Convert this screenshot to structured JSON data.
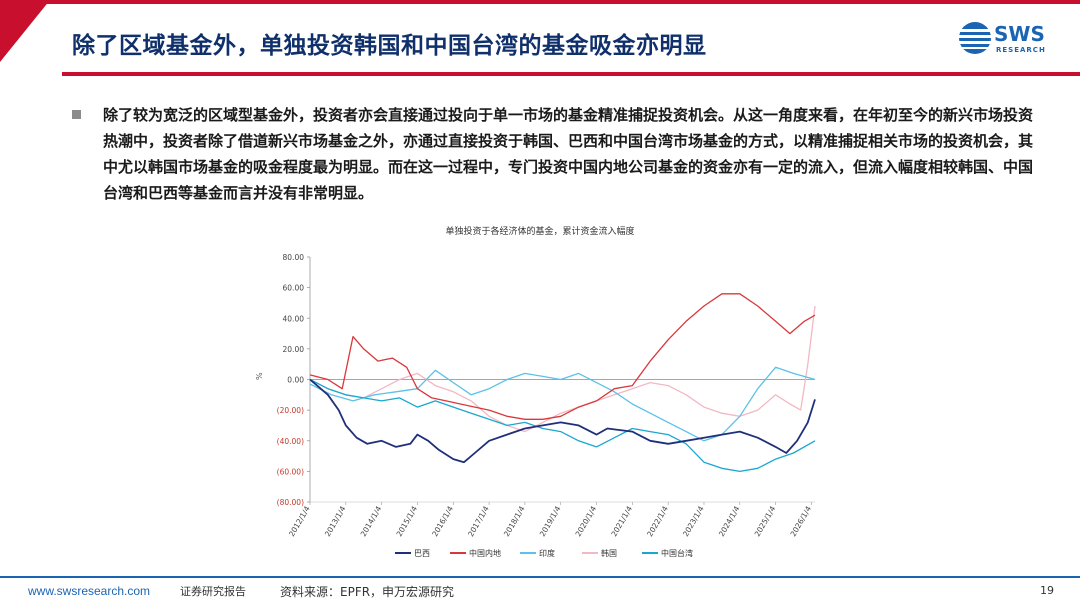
{
  "header": {
    "title": "除了区域基金外，单独投资韩国和中国台湾的基金吸金亦明显",
    "logo_text": "SWS",
    "logo_sub": "RESEARCH"
  },
  "body": {
    "paragraph": "除了较为宽泛的区域型基金外，投资者亦会直接通过投向于单一市场的基金精准捕捉投资机会。从这一角度来看，在年初至今的新兴市场投资热潮中，投资者除了借道新兴市场基金之外，亦通过直接投资于韩国、巴西和中国台湾市场基金的方式，以精准捕捉相关市场的投资机会，其中尤以韩国市场基金的吸金程度最为明显。而在这一过程中，专门投资中国内地公司基金的资金亦有一定的流入，但流入幅度相较韩国、中国台湾和巴西等基金而言并没有非常明显。"
  },
  "chart_data": {
    "type": "line",
    "title": "单独投资于各经济体的基金，累计资金流入幅度",
    "ylabel": "%",
    "ylim": [
      -80,
      80
    ],
    "y_ticks": [
      "80.00",
      "60.00",
      "40.00",
      "20.00",
      "0.00",
      "(20.00)",
      "(40.00)",
      "(60.00)",
      "(80.00)"
    ],
    "y_tick_values": [
      80,
      60,
      40,
      20,
      0,
      -20,
      -40,
      -60,
      -80
    ],
    "x_ticks": [
      "2012/1/4",
      "2013/1/4",
      "2014/1/4",
      "2015/1/4",
      "2016/1/4",
      "2017/1/4",
      "2018/1/4",
      "2019/1/4",
      "2020/1/4",
      "2021/1/4",
      "2022/1/4",
      "2023/1/4",
      "2024/1/4",
      "2025/1/4",
      "2026/1/4"
    ],
    "legend_position": "bottom",
    "series": [
      {
        "name": "巴西",
        "color": "#1f2f7a",
        "x": [
          2012.0,
          2012.5,
          2012.8,
          2013.0,
          2013.3,
          2013.6,
          2014.0,
          2014.4,
          2014.8,
          2015.0,
          2015.3,
          2015.6,
          2016.0,
          2016.3,
          2016.6,
          2017.0,
          2017.5,
          2018.0,
          2018.5,
          2019.0,
          2019.5,
          2020.0,
          2020.3,
          2021.0,
          2021.5,
          2022.0,
          2022.5,
          2023.0,
          2023.5,
          2024.0,
          2024.5,
          2025.0,
          2025.3,
          2025.6,
          2025.9,
          2026.1
        ],
        "y": [
          0,
          -10,
          -20,
          -30,
          -38,
          -42,
          -40,
          -44,
          -42,
          -36,
          -40,
          -46,
          -52,
          -54,
          -48,
          -40,
          -36,
          -32,
          -30,
          -28,
          -30,
          -36,
          -32,
          -34,
          -40,
          -42,
          -40,
          -38,
          -36,
          -34,
          -38,
          -44,
          -48,
          -40,
          -28,
          -13
        ]
      },
      {
        "name": "中国内地",
        "color": "#d9383a",
        "x": [
          2012.0,
          2012.5,
          2012.9,
          2013.2,
          2013.5,
          2013.9,
          2014.3,
          2014.7,
          2015.0,
          2015.4,
          2015.8,
          2016.2,
          2016.6,
          2017.0,
          2017.5,
          2018.0,
          2018.5,
          2019.0,
          2019.5,
          2020.0,
          2020.5,
          2021.0,
          2021.5,
          2022.0,
          2022.5,
          2023.0,
          2023.5,
          2024.0,
          2024.5,
          2025.0,
          2025.4,
          2025.8,
          2026.1
        ],
        "y": [
          3,
          0,
          -6,
          28,
          20,
          12,
          14,
          8,
          -6,
          -12,
          -14,
          -16,
          -18,
          -20,
          -24,
          -26,
          -26,
          -24,
          -18,
          -14,
          -6,
          -4,
          12,
          26,
          38,
          48,
          56,
          56,
          48,
          38,
          30,
          38,
          42
        ]
      },
      {
        "name": "印度",
        "color": "#5bc1e8",
        "x": [
          2012.0,
          2012.6,
          2013.2,
          2013.8,
          2014.4,
          2015.0,
          2015.5,
          2016.0,
          2016.5,
          2017.0,
          2017.5,
          2018.0,
          2018.5,
          2019.0,
          2019.5,
          2020.0,
          2020.5,
          2021.0,
          2021.5,
          2022.0,
          2022.5,
          2023.0,
          2023.5,
          2024.0,
          2024.5,
          2025.0,
          2025.5,
          2026.1
        ],
        "y": [
          -3,
          -10,
          -14,
          -10,
          -8,
          -6,
          6,
          -2,
          -10,
          -6,
          0,
          4,
          2,
          0,
          4,
          -2,
          -8,
          -16,
          -22,
          -28,
          -34,
          -40,
          -36,
          -24,
          -6,
          8,
          4,
          0
        ]
      },
      {
        "name": "韩国",
        "color": "#f2b8c3",
        "x": [
          2012.0,
          2012.5,
          2013.0,
          2013.5,
          2014.0,
          2014.5,
          2015.0,
          2015.5,
          2016.0,
          2016.5,
          2017.0,
          2017.5,
          2018.0,
          2018.5,
          2019.0,
          2019.5,
          2020.0,
          2020.5,
          2021.0,
          2021.5,
          2022.0,
          2022.5,
          2023.0,
          2023.5,
          2024.0,
          2024.5,
          2025.0,
          2025.4,
          2025.7,
          2025.9,
          2026.1
        ],
        "y": [
          0,
          -6,
          -10,
          -12,
          -6,
          0,
          4,
          -4,
          -8,
          -14,
          -24,
          -30,
          -34,
          -28,
          -22,
          -18,
          -14,
          -10,
          -6,
          -2,
          -4,
          -10,
          -18,
          -22,
          -24,
          -20,
          -10,
          -16,
          -20,
          10,
          48
        ]
      },
      {
        "name": "中国台湾",
        "color": "#1aa7cf",
        "x": [
          2012.0,
          2012.5,
          2013.0,
          2013.5,
          2014.0,
          2014.5,
          2015.0,
          2015.5,
          2016.0,
          2016.5,
          2017.0,
          2017.5,
          2018.0,
          2018.5,
          2019.0,
          2019.5,
          2020.0,
          2020.5,
          2021.0,
          2021.5,
          2022.0,
          2022.5,
          2023.0,
          2023.5,
          2024.0,
          2024.5,
          2025.0,
          2025.5,
          2026.1
        ],
        "y": [
          0,
          -6,
          -10,
          -12,
          -14,
          -12,
          -18,
          -14,
          -18,
          -22,
          -26,
          -30,
          -28,
          -32,
          -34,
          -40,
          -44,
          -38,
          -32,
          -34,
          -36,
          -42,
          -54,
          -58,
          -60,
          -58,
          -52,
          -48,
          -40
        ]
      }
    ]
  },
  "footer": {
    "url": "www.swsresearch.com",
    "tag": "证券研究报告",
    "source": "资料来源：EPFR，申万宏源研究",
    "page": "19"
  },
  "colors": {
    "brand_red": "#c8102e",
    "brand_blue": "#1b64b4",
    "title_navy": "#10306b"
  }
}
